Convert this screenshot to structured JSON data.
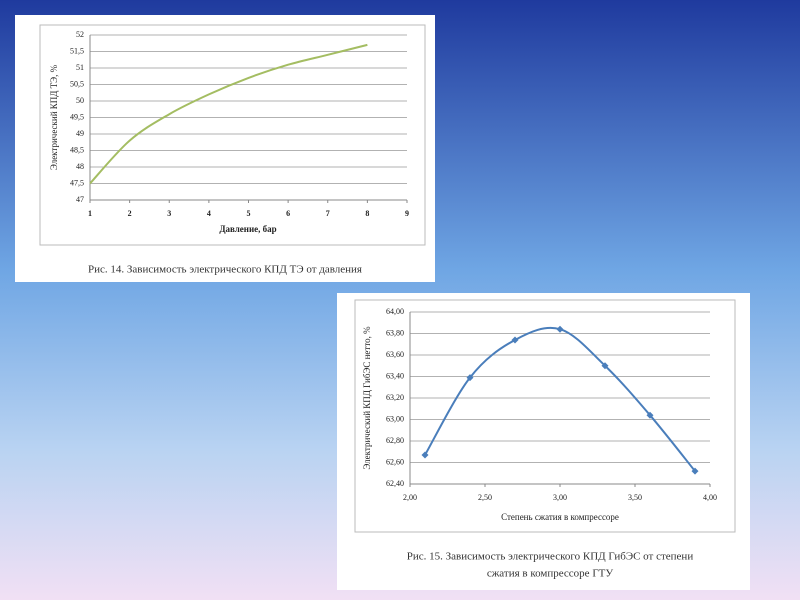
{
  "chart_data": [
    {
      "type": "line",
      "caption": [
        "Рис. 14. Зависимость электрического КПД ТЭ от давления"
      ],
      "x_label": "Давление, бар",
      "y_label": "Электрический КПД ТЭ, %",
      "x": [
        1,
        2,
        3,
        4,
        5,
        6,
        7,
        8
      ],
      "series": [
        {
          "name": "КПД ТЭ",
          "color": "#a4bd62",
          "values": [
            47.5,
            48.8,
            49.6,
            50.2,
            50.7,
            51.1,
            51.4,
            51.7
          ]
        }
      ],
      "xlim": [
        1,
        9
      ],
      "xticks": [
        1,
        2,
        3,
        4,
        5,
        6,
        7,
        8,
        9
      ],
      "ylim": [
        47,
        52
      ],
      "yticks": [
        47,
        {
          "value": 47.5,
          "label": "47,5"
        },
        48,
        {
          "value": 48.5,
          "label": "48,5"
        },
        49,
        {
          "value": 49.5,
          "label": "49,5"
        },
        50,
        {
          "value": 50.5,
          "label": "50,5"
        },
        51,
        {
          "value": 51.5,
          "label": "51,5"
        },
        52
      ],
      "grid": true,
      "markers": false
    },
    {
      "type": "line",
      "caption": [
        "Рис. 15. Зависимость электрического КПД ГибЭС от степени",
        "сжатия в компрессоре ГТУ"
      ],
      "x_label": "Степень сжатия в компрессоре",
      "y_label": "Электрический КПД ГибЭС нетто, %",
      "x": [
        2.1,
        2.4,
        2.7,
        3.0,
        3.3,
        3.6,
        3.9
      ],
      "series": [
        {
          "name": "КПД ГибЭС",
          "color": "#4a7ebb",
          "values": [
            62.67,
            63.39,
            63.74,
            63.84,
            63.5,
            63.04,
            62.52
          ]
        }
      ],
      "xlim": [
        2,
        4
      ],
      "xticks": [
        {
          "value": 2,
          "label": "2,00"
        },
        {
          "value": 2.5,
          "label": "2,50"
        },
        {
          "value": 3,
          "label": "3,00"
        },
        {
          "value": 3.5,
          "label": "3,50"
        },
        {
          "value": 4,
          "label": "4,00"
        }
      ],
      "ylim": [
        62.4,
        64
      ],
      "yticks": [
        {
          "value": 62.4,
          "label": "62,40"
        },
        {
          "value": 62.6,
          "label": "62,60"
        },
        {
          "value": 62.8,
          "label": "62,80"
        },
        {
          "value": 63,
          "label": "63,00"
        },
        {
          "value": 63.2,
          "label": "63,20"
        },
        {
          "value": 63.4,
          "label": "63,40"
        },
        {
          "value": 63.6,
          "label": "63,60"
        },
        {
          "value": 63.8,
          "label": "63,80"
        },
        {
          "value": 64,
          "label": "64,00"
        }
      ],
      "grid": true,
      "markers": true
    }
  ]
}
